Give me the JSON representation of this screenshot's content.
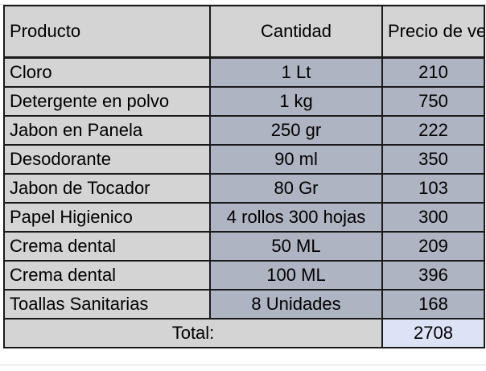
{
  "table": {
    "headers": {
      "product": "Producto",
      "quantity": "Cantidad",
      "price": "Precio de venta"
    },
    "rows": [
      {
        "product": "Cloro",
        "quantity": "1 Lt",
        "price": "210"
      },
      {
        "product": "Detergente en polvo",
        "quantity": "1 kg",
        "price": "750"
      },
      {
        "product": "Jabon en Panela",
        "quantity": "250 gr",
        "price": "222"
      },
      {
        "product": "Desodorante",
        "quantity": "90 ml",
        "price": "350"
      },
      {
        "product": "Jabon de Tocador",
        "quantity": "80 Gr",
        "price": "103"
      },
      {
        "product": "Papel Higienico",
        "quantity": "4 rollos 300 hojas",
        "price": "300"
      },
      {
        "product": "Crema dental",
        "quantity": "50 ML",
        "price": "209"
      },
      {
        "product": "Crema dental",
        "quantity": "100 ML",
        "price": "396"
      },
      {
        "product": "Toallas Sanitarias",
        "quantity": "8 Unidades",
        "price": "168"
      }
    ],
    "total": {
      "label": "Total:",
      "value": "2708"
    }
  },
  "colors": {
    "header_fill": "#d4d4d4",
    "product_fill": "#d4d4d4",
    "value_fill": "#aeb4c2",
    "total_value_fill": "#dde3f7",
    "border": "#1a1a1a"
  }
}
